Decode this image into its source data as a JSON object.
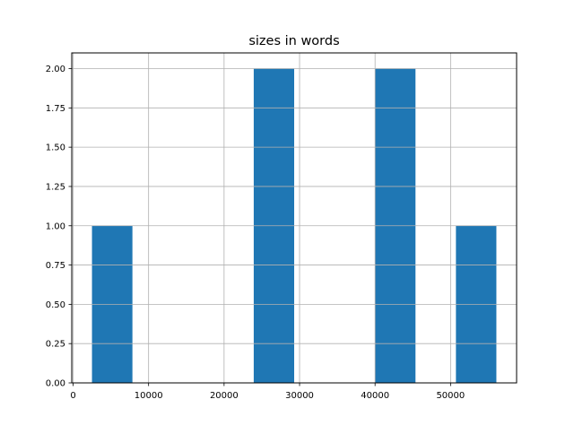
{
  "chart_data": {
    "type": "bar",
    "subtype": "histogram",
    "title": "sizes in words",
    "xlabel": "",
    "ylabel": "",
    "bin_edges": [
      2500,
      7857,
      13214,
      18571,
      23928,
      29285,
      34642,
      39999,
      45356,
      50713,
      56070
    ],
    "values": [
      1,
      0,
      0,
      0,
      2,
      0,
      0,
      2,
      0,
      1
    ],
    "xlim": [
      -180,
      58750
    ],
    "ylim": [
      0,
      2.1
    ],
    "xticks": [
      0,
      10000,
      20000,
      30000,
      40000,
      50000
    ],
    "xtick_labels": [
      "0",
      "10000",
      "20000",
      "30000",
      "40000",
      "50000"
    ],
    "yticks": [
      0,
      0.25,
      0.5,
      0.75,
      1.0,
      1.25,
      1.5,
      1.75,
      2.0
    ],
    "ytick_labels": [
      "0.00",
      "0.25",
      "0.50",
      "0.75",
      "1.00",
      "1.25",
      "1.50",
      "1.75",
      "2.00"
    ],
    "grid": true,
    "bar_color": "#1f77b4",
    "grid_color": "#b0b0b0"
  }
}
